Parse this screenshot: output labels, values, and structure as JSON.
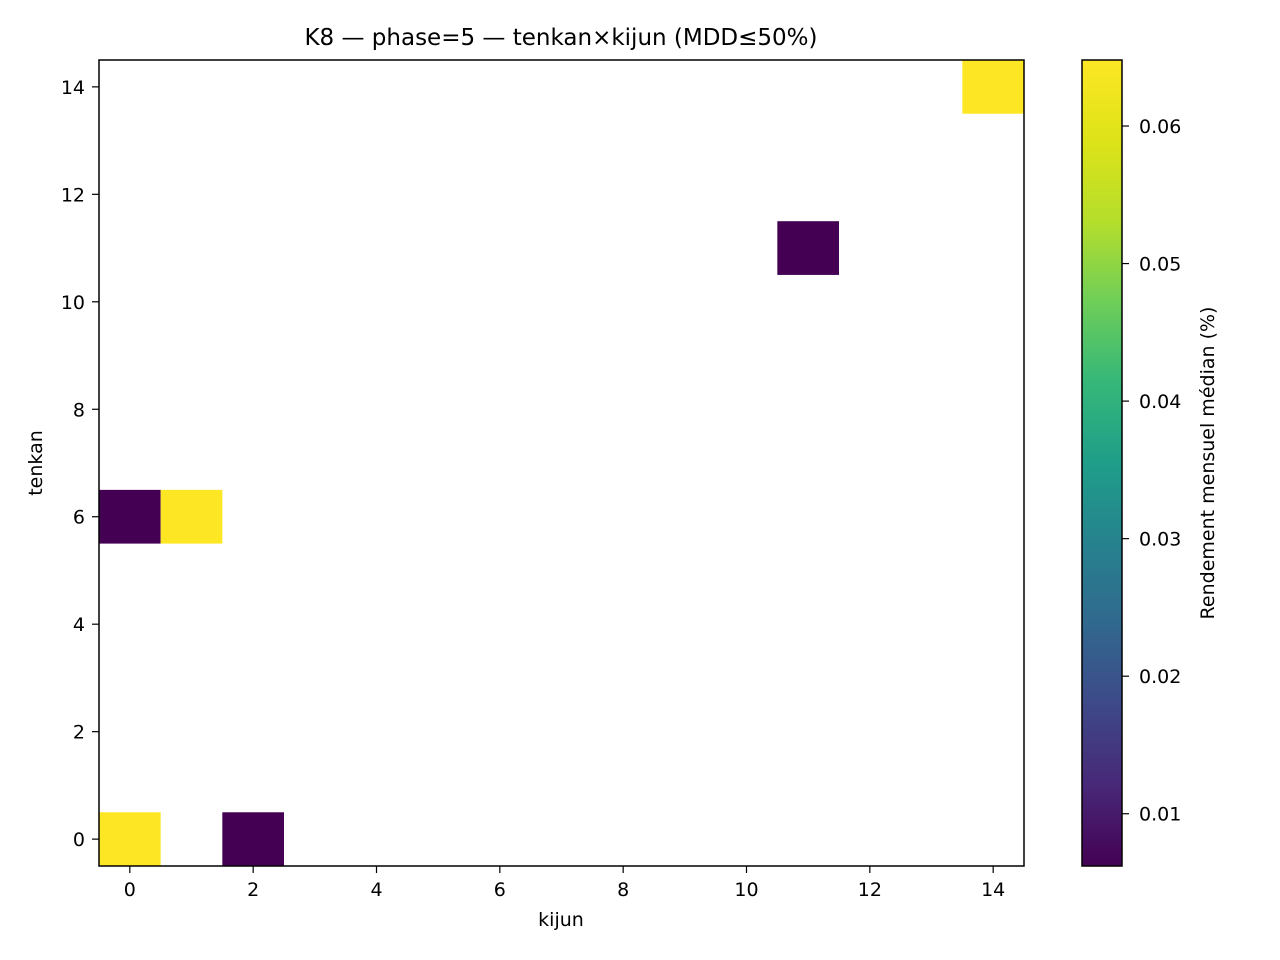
{
  "chart_data": {
    "type": "heatmap",
    "title": "K8 — phase=5 — tenkan×kijun (MDD≤50%)",
    "xlabel": "kijun",
    "ylabel": "tenkan",
    "colorbar_label": "Rendement mensuel médian (%)",
    "colormap": "viridis",
    "xlim": [
      -0.5,
      14.5
    ],
    "ylim": [
      -0.5,
      14.5
    ],
    "x_ticks": [
      0,
      2,
      4,
      6,
      8,
      10,
      12,
      14
    ],
    "y_ticks": [
      0,
      2,
      4,
      6,
      8,
      10,
      12,
      14
    ],
    "color_range": [
      0.0062,
      0.0648
    ],
    "colorbar_ticks": [
      0.01,
      0.02,
      0.03,
      0.04,
      0.05,
      0.06
    ],
    "cells": [
      {
        "kijun": 0,
        "tenkan": 0,
        "value": 0.0648
      },
      {
        "kijun": 2,
        "tenkan": 0,
        "value": 0.0062
      },
      {
        "kijun": 0,
        "tenkan": 6,
        "value": 0.0062
      },
      {
        "kijun": 1,
        "tenkan": 6,
        "value": 0.0648
      },
      {
        "kijun": 11,
        "tenkan": 11,
        "value": 0.0062
      },
      {
        "kijun": 14,
        "tenkan": 14,
        "value": 0.0648
      }
    ]
  }
}
